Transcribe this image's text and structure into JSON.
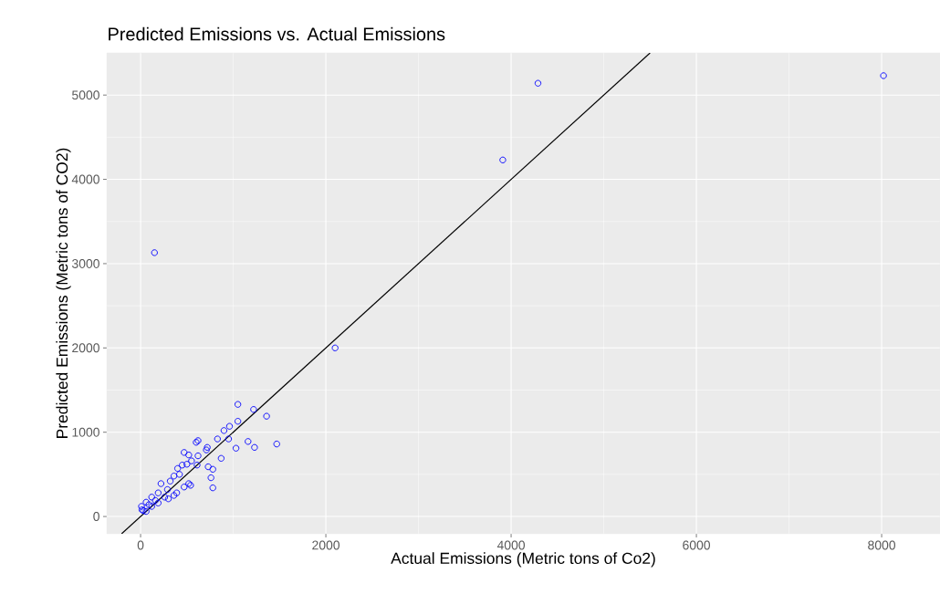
{
  "chart_data": {
    "type": "scatter",
    "title": "Predicted Emissions vs. Actual Emissions",
    "xlabel": "Actual Emissions (Metric tons of Co2)",
    "ylabel": "Predicted Emissions (Metric tons of CO2)",
    "xlim": [
      -365,
      8630
    ],
    "ylim": [
      -205,
      5500
    ],
    "xticks": [
      0,
      2000,
      4000,
      6000,
      8000
    ],
    "yticks": [
      0,
      1000,
      2000,
      3000,
      4000,
      5000
    ],
    "grid": true,
    "marker": "circle",
    "series": [
      {
        "color": "#0000ff",
        "x": [
          1050,
          1220,
          1360,
          1470,
          1050,
          960,
          900,
          950,
          830,
          1160,
          1230,
          1030,
          620,
          600,
          720,
          710,
          870,
          470,
          520,
          620,
          550,
          500,
          610,
          730,
          780,
          760,
          780,
          400,
          450,
          360,
          420,
          520,
          540,
          470,
          220,
          320,
          290,
          390,
          300,
          190,
          120,
          60,
          10,
          30,
          15,
          90,
          160,
          260,
          360,
          190,
          60,
          120,
          150,
          2100,
          3910,
          4290,
          8020
        ],
        "values": [
          1330,
          1270,
          1190,
          860,
          1130,
          1070,
          1020,
          920,
          920,
          890,
          820,
          810,
          900,
          880,
          820,
          790,
          690,
          760,
          730,
          720,
          660,
          620,
          610,
          590,
          560,
          460,
          340,
          570,
          610,
          480,
          500,
          390,
          370,
          350,
          390,
          420,
          320,
          280,
          210,
          280,
          230,
          170,
          120,
          70,
          80,
          140,
          190,
          230,
          250,
          160,
          60,
          120,
          3130,
          2000,
          4230,
          5140,
          5230
        ]
      },
      {
        "type": "line",
        "color": "#000000",
        "marker": "none",
        "x": [
          -205,
          5500
        ],
        "values": [
          -205,
          5500
        ]
      }
    ]
  }
}
